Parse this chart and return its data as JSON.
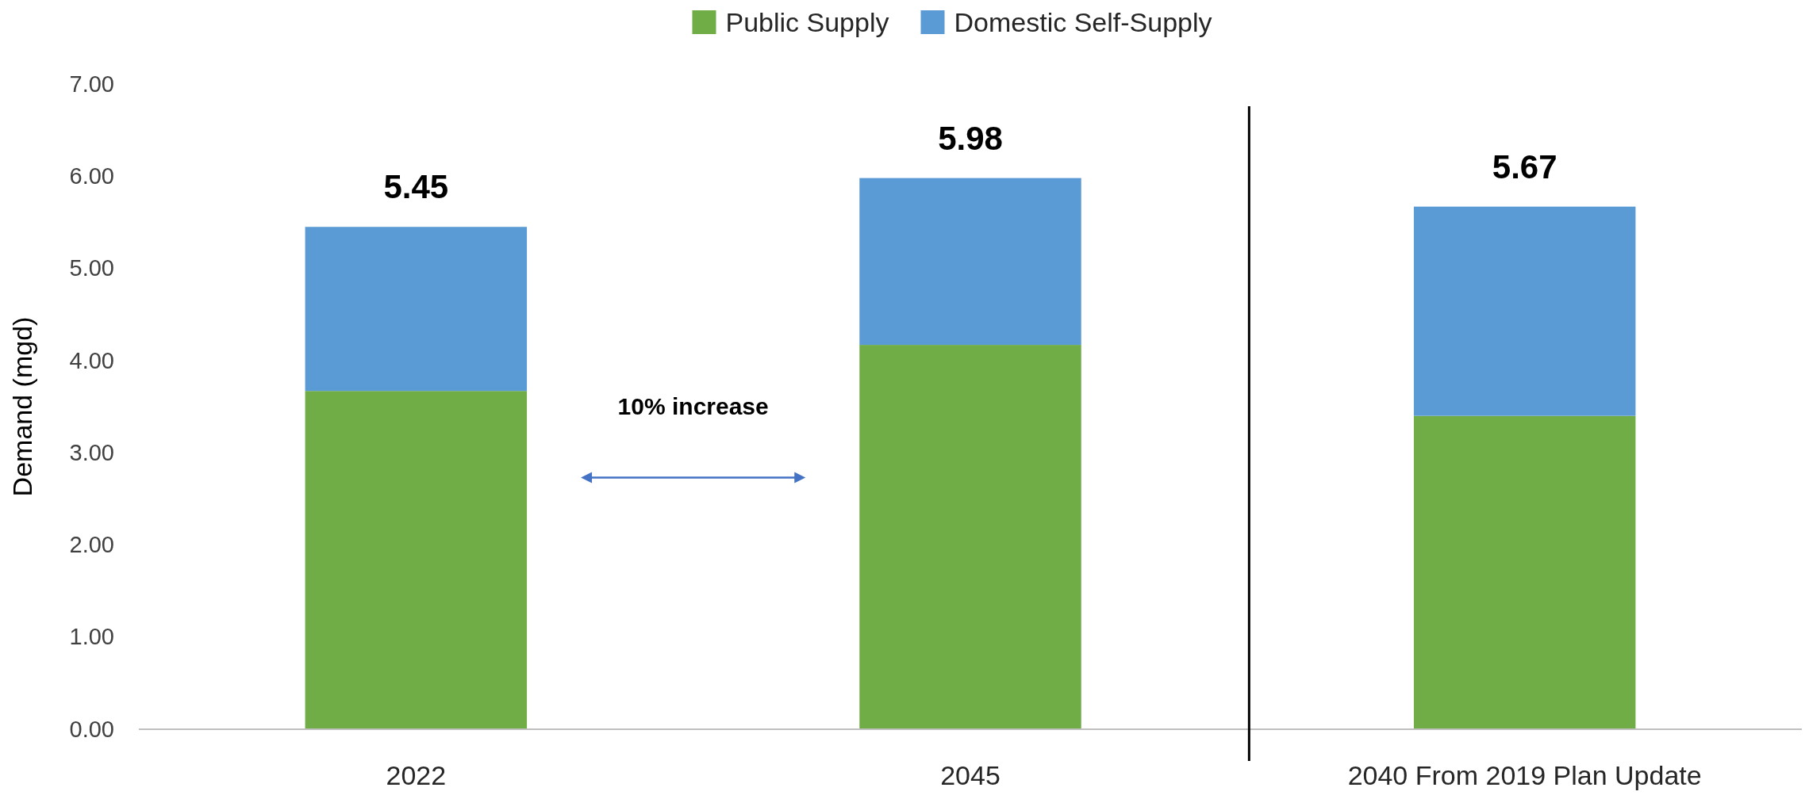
{
  "chart_data": {
    "type": "bar",
    "stacked": true,
    "ylabel": "Demand (mgd)",
    "categories": [
      "2022",
      "2045",
      "2040 From 2019 Plan Update"
    ],
    "series": [
      {
        "name": "Public Supply",
        "color": "#70ad47",
        "values": [
          3.67,
          4.17,
          3.4
        ]
      },
      {
        "name": "Domestic Self-Supply",
        "color": "#5b9bd5",
        "values": [
          1.78,
          1.81,
          2.27
        ]
      }
    ],
    "totals": [
      "5.45",
      "5.98",
      "5.67"
    ],
    "ylim": [
      0,
      7
    ],
    "yticks": [
      {
        "value": 0,
        "label": "0.00"
      },
      {
        "value": 1,
        "label": "1.00"
      },
      {
        "value": 2,
        "label": "2.00"
      },
      {
        "value": 3,
        "label": "3.00"
      },
      {
        "value": 4,
        "label": "4.00"
      },
      {
        "value": 5,
        "label": "5.00"
      },
      {
        "value": 6,
        "label": "6.00"
      },
      {
        "value": 7,
        "label": "7.00"
      }
    ],
    "annotations": [
      "10% increase"
    ],
    "legend": "top",
    "grid": false
  }
}
